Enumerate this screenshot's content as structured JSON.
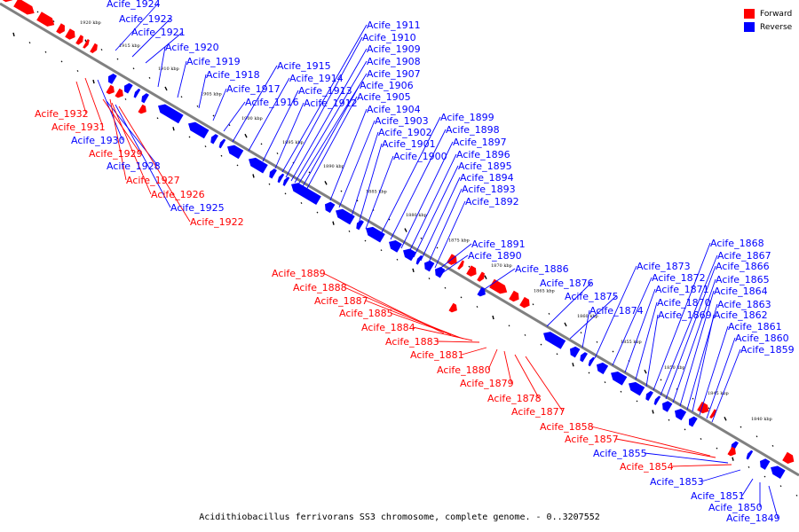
{
  "caption": "Acidithiobacillus ferrivorans SS3 chromosome, complete genome. - 0..3207552",
  "legend": {
    "forward": {
      "label": "Forward",
      "color": "#ff0000"
    },
    "reverse": {
      "label": "Reverse",
      "color": "#0000ff"
    }
  },
  "colors": {
    "backbone": "#808080",
    "forward": "#ff0000",
    "reverse": "#0000ff",
    "text": "#000000"
  },
  "scale_marks": [
    "1920 kbp",
    "1915 kbp",
    "1910 kbp",
    "1905 kbp",
    "1900 kbp",
    "1895 kbp",
    "1890 kbp",
    "1885 kbp",
    "1880 kbp",
    "1875 kbp",
    "1870 kbp",
    "1865 kbp",
    "1860 kbp",
    "1855 kbp",
    "1850 kbp",
    "1845 kbp",
    "1840 kbp"
  ],
  "genes": [
    {
      "id": "Acife_1924",
      "strand": "reverse"
    },
    {
      "id": "Acife_1923",
      "strand": "reverse"
    },
    {
      "id": "Acife_1921",
      "strand": "reverse"
    },
    {
      "id": "Acife_1920",
      "strand": "reverse"
    },
    {
      "id": "Acife_1919",
      "strand": "reverse"
    },
    {
      "id": "Acife_1918",
      "strand": "reverse"
    },
    {
      "id": "Acife_1917",
      "strand": "reverse"
    },
    {
      "id": "Acife_1916",
      "strand": "reverse"
    },
    {
      "id": "Acife_1915",
      "strand": "reverse"
    },
    {
      "id": "Acife_1914",
      "strand": "reverse"
    },
    {
      "id": "Acife_1913",
      "strand": "reverse"
    },
    {
      "id": "Acife_1912",
      "strand": "reverse"
    },
    {
      "id": "Acife_1911",
      "strand": "reverse"
    },
    {
      "id": "Acife_1910",
      "strand": "reverse"
    },
    {
      "id": "Acife_1909",
      "strand": "reverse"
    },
    {
      "id": "Acife_1908",
      "strand": "reverse"
    },
    {
      "id": "Acife_1907",
      "strand": "reverse"
    },
    {
      "id": "Acife_1906",
      "strand": "reverse"
    },
    {
      "id": "Acife_1905",
      "strand": "reverse"
    },
    {
      "id": "Acife_1904",
      "strand": "reverse"
    },
    {
      "id": "Acife_1903",
      "strand": "reverse"
    },
    {
      "id": "Acife_1902",
      "strand": "reverse"
    },
    {
      "id": "Acife_1901",
      "strand": "reverse"
    },
    {
      "id": "Acife_1900",
      "strand": "reverse"
    },
    {
      "id": "Acife_1899",
      "strand": "reverse"
    },
    {
      "id": "Acife_1898",
      "strand": "reverse"
    },
    {
      "id": "Acife_1897",
      "strand": "reverse"
    },
    {
      "id": "Acife_1896",
      "strand": "reverse"
    },
    {
      "id": "Acife_1895",
      "strand": "reverse"
    },
    {
      "id": "Acife_1894",
      "strand": "reverse"
    },
    {
      "id": "Acife_1893",
      "strand": "reverse"
    },
    {
      "id": "Acife_1892",
      "strand": "reverse"
    },
    {
      "id": "Acife_1891",
      "strand": "reverse"
    },
    {
      "id": "Acife_1890",
      "strand": "reverse"
    },
    {
      "id": "Acife_1886",
      "strand": "reverse"
    },
    {
      "id": "Acife_1876",
      "strand": "reverse"
    },
    {
      "id": "Acife_1875",
      "strand": "reverse"
    },
    {
      "id": "Acife_1874",
      "strand": "reverse"
    },
    {
      "id": "Acife_1873",
      "strand": "reverse"
    },
    {
      "id": "Acife_1872",
      "strand": "reverse"
    },
    {
      "id": "Acife_1871",
      "strand": "reverse"
    },
    {
      "id": "Acife_1870",
      "strand": "reverse"
    },
    {
      "id": "Acife_1869",
      "strand": "reverse"
    },
    {
      "id": "Acife_1868",
      "strand": "reverse"
    },
    {
      "id": "Acife_1867",
      "strand": "reverse"
    },
    {
      "id": "Acife_1866",
      "strand": "reverse"
    },
    {
      "id": "Acife_1865",
      "strand": "reverse"
    },
    {
      "id": "Acife_1864",
      "strand": "reverse"
    },
    {
      "id": "Acife_1863",
      "strand": "reverse"
    },
    {
      "id": "Acife_1862",
      "strand": "reverse"
    },
    {
      "id": "Acife_1861",
      "strand": "reverse"
    },
    {
      "id": "Acife_1860",
      "strand": "reverse"
    },
    {
      "id": "Acife_1859",
      "strand": "reverse"
    },
    {
      "id": "Acife_1932",
      "strand": "forward"
    },
    {
      "id": "Acife_1931",
      "strand": "forward"
    },
    {
      "id": "Acife_1930",
      "strand": "reverse"
    },
    {
      "id": "Acife_1929",
      "strand": "forward"
    },
    {
      "id": "Acife_1928",
      "strand": "reverse"
    },
    {
      "id": "Acife_1927",
      "strand": "forward"
    },
    {
      "id": "Acife_1926",
      "strand": "forward"
    },
    {
      "id": "Acife_1925",
      "strand": "reverse"
    },
    {
      "id": "Acife_1922",
      "strand": "forward"
    },
    {
      "id": "Acife_1889",
      "strand": "forward"
    },
    {
      "id": "Acife_1888",
      "strand": "forward"
    },
    {
      "id": "Acife_1887",
      "strand": "forward"
    },
    {
      "id": "Acife_1885",
      "strand": "forward"
    },
    {
      "id": "Acife_1884",
      "strand": "forward"
    },
    {
      "id": "Acife_1883",
      "strand": "forward"
    },
    {
      "id": "Acife_1881",
      "strand": "forward"
    },
    {
      "id": "Acife_1880",
      "strand": "forward"
    },
    {
      "id": "Acife_1879",
      "strand": "forward"
    },
    {
      "id": "Acife_1878",
      "strand": "forward"
    },
    {
      "id": "Acife_1877",
      "strand": "forward"
    },
    {
      "id": "Acife_1858",
      "strand": "forward"
    },
    {
      "id": "Acife_1857",
      "strand": "forward"
    },
    {
      "id": "Acife_1855",
      "strand": "reverse"
    },
    {
      "id": "Acife_1854",
      "strand": "forward"
    },
    {
      "id": "Acife_1853",
      "strand": "reverse"
    },
    {
      "id": "Acife_1851",
      "strand": "reverse"
    },
    {
      "id": "Acife_1850",
      "strand": "reverse"
    },
    {
      "id": "Acife_1849",
      "strand": "reverse"
    }
  ]
}
